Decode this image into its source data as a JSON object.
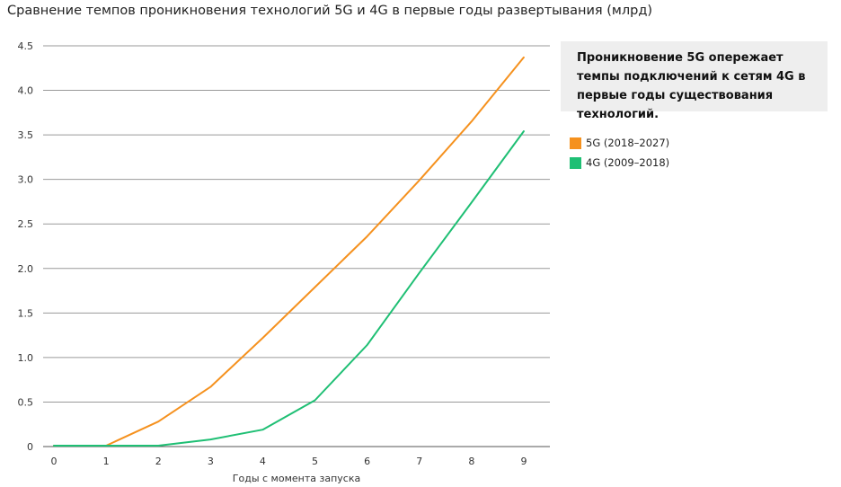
{
  "chart_data": {
    "type": "line",
    "title": "Сравнение темпов проникновения технологий 5G и 4G в первые годы развертывания (млрд)",
    "xlabel": "Годы с момента запуска",
    "ylabel": "",
    "x": [
      0,
      1,
      2,
      3,
      4,
      5,
      6,
      7,
      8,
      9
    ],
    "x_tick_labels": [
      "0",
      "1",
      "2",
      "3",
      "4",
      "5",
      "6",
      "7",
      "8",
      "9"
    ],
    "ylim": [
      0,
      4.5
    ],
    "y_ticks": [
      0,
      0.5,
      1.0,
      1.5,
      2.0,
      2.5,
      3.0,
      3.5,
      4.0,
      4.5
    ],
    "y_tick_labels": [
      "0",
      "0.5",
      "1.0",
      "1.5",
      "2.0",
      "2.5",
      "3.0",
      "3.5",
      "4.0",
      "4.5"
    ],
    "grid": true,
    "legend_position": "right",
    "series": [
      {
        "name": "5G (2018–2027)",
        "color": "#f5911e",
        "values": [
          0.01,
          0.01,
          0.28,
          0.67,
          1.22,
          1.79,
          2.36,
          2.99,
          3.65,
          4.37
        ]
      },
      {
        "name": "4G (2009–2018)",
        "color": "#1fbf74",
        "values": [
          0.01,
          0.01,
          0.01,
          0.08,
          0.19,
          0.52,
          1.14,
          1.95,
          2.74,
          3.54
        ]
      }
    ],
    "annotation": "Проникновение 5G опережает темпы подключений к сетям 4G в первые годы существования технологий."
  }
}
